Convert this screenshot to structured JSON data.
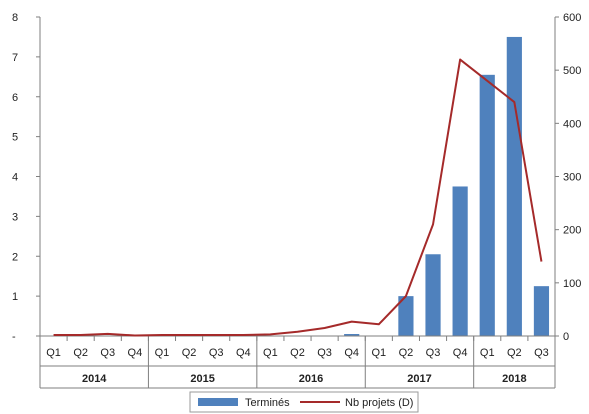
{
  "chart_data": {
    "type": "bar",
    "title": "",
    "xlabel": "",
    "ylabel": "",
    "categories": [
      "Q1",
      "Q2",
      "Q3",
      "Q4",
      "Q1",
      "Q2",
      "Q3",
      "Q4",
      "Q1",
      "Q2",
      "Q3",
      "Q4",
      "Q1",
      "Q2",
      "Q3",
      "Q4",
      "Q1",
      "Q2",
      "Q3"
    ],
    "groups": [
      {
        "label": "2014",
        "count": 4
      },
      {
        "label": "2015",
        "count": 4
      },
      {
        "label": "2016",
        "count": 4
      },
      {
        "label": "2017",
        "count": 4
      },
      {
        "label": "2018",
        "count": 3
      }
    ],
    "series": [
      {
        "name": "Terminés",
        "type": "bar",
        "axis": "left",
        "color": "#4f81bd",
        "values": [
          0,
          0,
          0,
          0,
          0,
          0,
          0,
          0,
          0,
          0,
          0,
          0.05,
          0,
          1.0,
          2.05,
          3.75,
          6.55,
          7.5,
          1.25
        ]
      },
      {
        "name": "Nb projets (D)",
        "type": "line",
        "axis": "right",
        "color": "#a52a2a",
        "values": [
          2,
          2,
          4,
          1,
          2,
          2,
          2,
          2,
          3,
          8,
          15,
          27,
          22,
          75,
          210,
          520,
          480,
          440,
          140
        ]
      }
    ],
    "ylim": [
      0,
      8
    ],
    "y_ticks": [
      "-",
      "1",
      "2",
      "3",
      "4",
      "5",
      "6",
      "7",
      "8"
    ],
    "y2lim": [
      0,
      600
    ],
    "y2_ticks": [
      "0",
      "100",
      "200",
      "300",
      "400",
      "500",
      "600"
    ],
    "grid": false,
    "legend_position": "bottom"
  }
}
